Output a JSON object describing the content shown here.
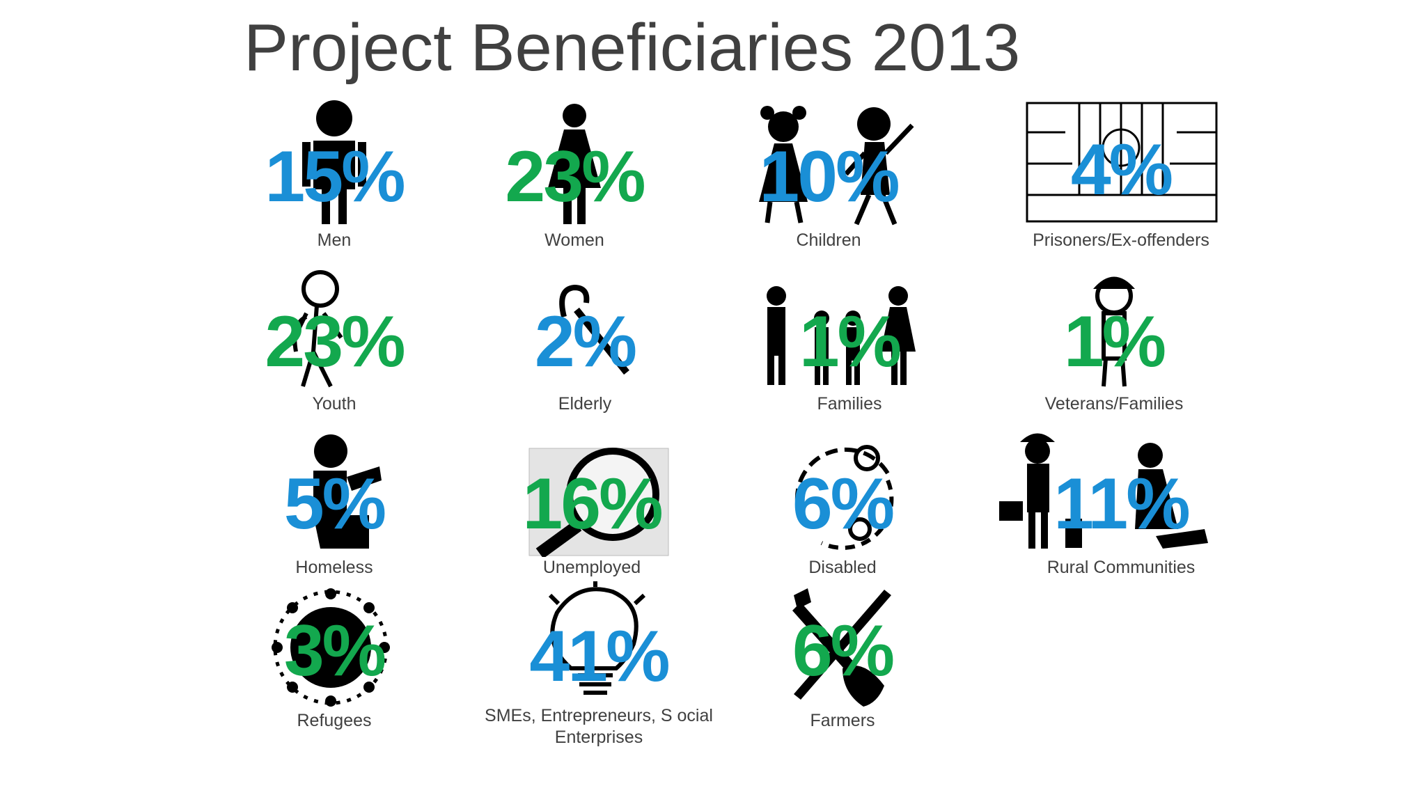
{
  "title": "Project Beneficiaries 2013",
  "colors": {
    "blue": "#1a8fd6",
    "green": "#13a84e",
    "text": "#404040"
  },
  "items": [
    {
      "label": "Men",
      "percent": "15%",
      "color": "blue",
      "icon": "man-icon"
    },
    {
      "label": "Women",
      "percent": "23%",
      "color": "green",
      "icon": "woman-icon"
    },
    {
      "label": "Children",
      "percent": "10%",
      "color": "blue",
      "icon": "children-icon"
    },
    {
      "label": "Prisoners/Ex-offenders",
      "percent": "4%",
      "color": "blue",
      "icon": "prison-icon"
    },
    {
      "label": "Youth",
      "percent": "23%",
      "color": "green",
      "icon": "youth-icon"
    },
    {
      "label": "Elderly",
      "percent": "2%",
      "color": "blue",
      "icon": "cane-icon"
    },
    {
      "label": "Families",
      "percent": "1%",
      "color": "green",
      "icon": "family-icon"
    },
    {
      "label": "Veterans/Families",
      "percent": "1%",
      "color": "green",
      "icon": "soldier-icon"
    },
    {
      "label": "Homeless",
      "percent": "5%",
      "color": "blue",
      "icon": "homeless-icon"
    },
    {
      "label": "Unemployed",
      "percent": "16%",
      "color": "green",
      "icon": "magnifier-icon"
    },
    {
      "label": "Disabled",
      "percent": "6%",
      "color": "blue",
      "icon": "disability-icon"
    },
    {
      "label": "Rural Communities",
      "percent": "11%",
      "color": "blue",
      "icon": "rural-icon"
    },
    {
      "label": "Refugees",
      "percent": "3%",
      "color": "green",
      "icon": "globe-people-icon"
    },
    {
      "label": "SMEs, Entrepreneurs, S ocial Enterprises",
      "percent": "41%",
      "color": "blue",
      "icon": "lightbulb-icon"
    },
    {
      "label": "Farmers",
      "percent": "6%",
      "color": "green",
      "icon": "shovel-icon"
    }
  ]
}
